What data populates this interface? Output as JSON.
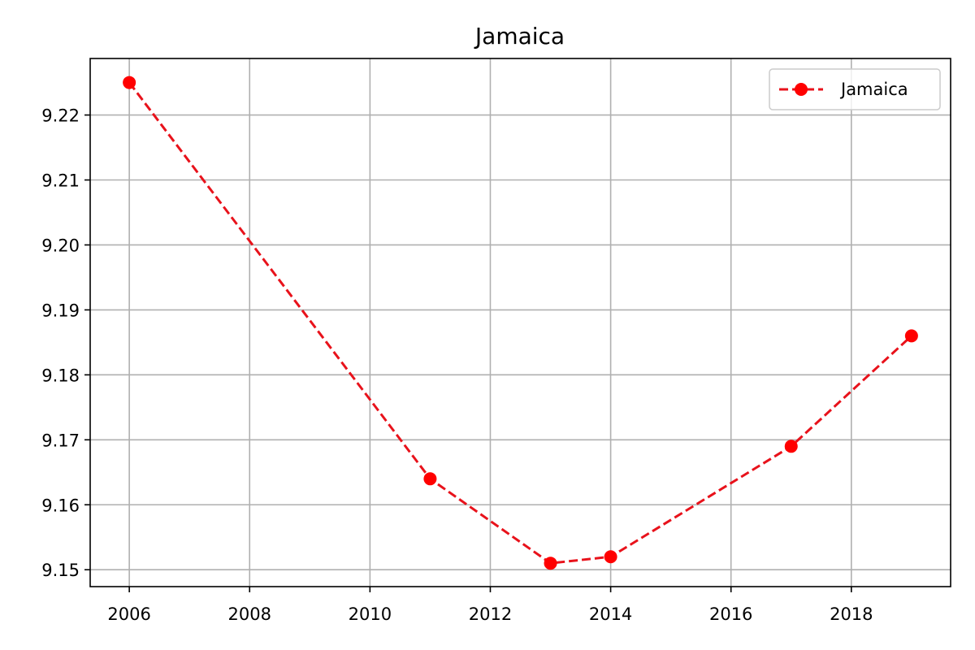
{
  "chart_data": {
    "type": "line",
    "title": "Jamaica",
    "xlabel": "",
    "ylabel": "",
    "x": [
      2006,
      2011,
      2013,
      2014,
      2017,
      2019
    ],
    "series": [
      {
        "name": "Jamaica",
        "values": [
          9.225,
          9.164,
          9.151,
          9.152,
          9.169,
          9.186
        ],
        "color": "#ff0000",
        "line_color": "#e8121b",
        "line_style": "dashed",
        "marker": "circle"
      }
    ],
    "xlim": [
      2005.35,
      2019.65
    ],
    "ylim": [
      9.1474,
      9.2287
    ],
    "x_ticks": [
      2006,
      2008,
      2010,
      2012,
      2014,
      2016,
      2018
    ],
    "x_tick_labels": [
      "2006",
      "2008",
      "2010",
      "2012",
      "2014",
      "2016",
      "2018"
    ],
    "y_ticks": [
      9.15,
      9.16,
      9.17,
      9.18,
      9.19,
      9.2,
      9.21,
      9.22
    ],
    "y_tick_labels": [
      "9.15",
      "9.16",
      "9.17",
      "9.18",
      "9.19",
      "9.20",
      "9.21",
      "9.22"
    ],
    "grid": true,
    "legend_position": "top-right"
  }
}
